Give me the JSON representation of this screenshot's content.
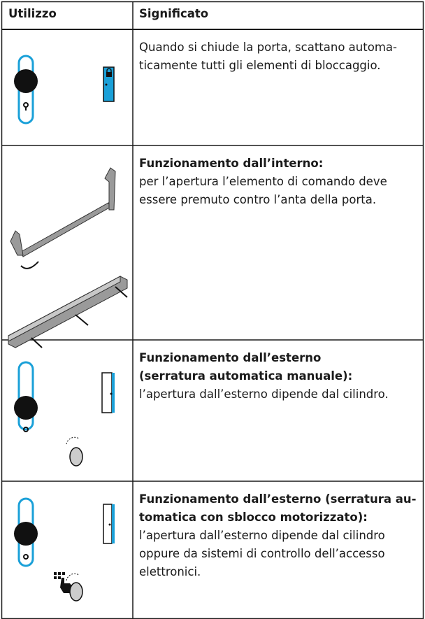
{
  "table": {
    "header": [
      "Utilizzo",
      "Significato"
    ],
    "rows": [
      {
        "title": [],
        "text": [
          "Quando si chiude la porta, scattano automa-",
          "ticamente tutti gli elementi di bloccaggio."
        ]
      },
      {
        "title": [
          "Funzionamento dall’interno:"
        ],
        "text": [
          "per l’apertura l’elemento di comando deve",
          "essere premuto contro l’anta della porta."
        ]
      },
      {
        "title": [
          "Funzionamento dall’esterno",
          "(serratura automatica manuale):"
        ],
        "text": [
          "l’apertura dall’esterno dipende dal cilindro."
        ]
      },
      {
        "title": [
          "Funzionamento dall’esterno (serratura au-",
          "tomatica con sblocco motorizzato):"
        ],
        "text": [
          "l’apertura dall’esterno dipende dal cilindro",
          "oppure da sistemi di controllo dell’accesso",
          "elettronici."
        ]
      }
    ]
  }
}
